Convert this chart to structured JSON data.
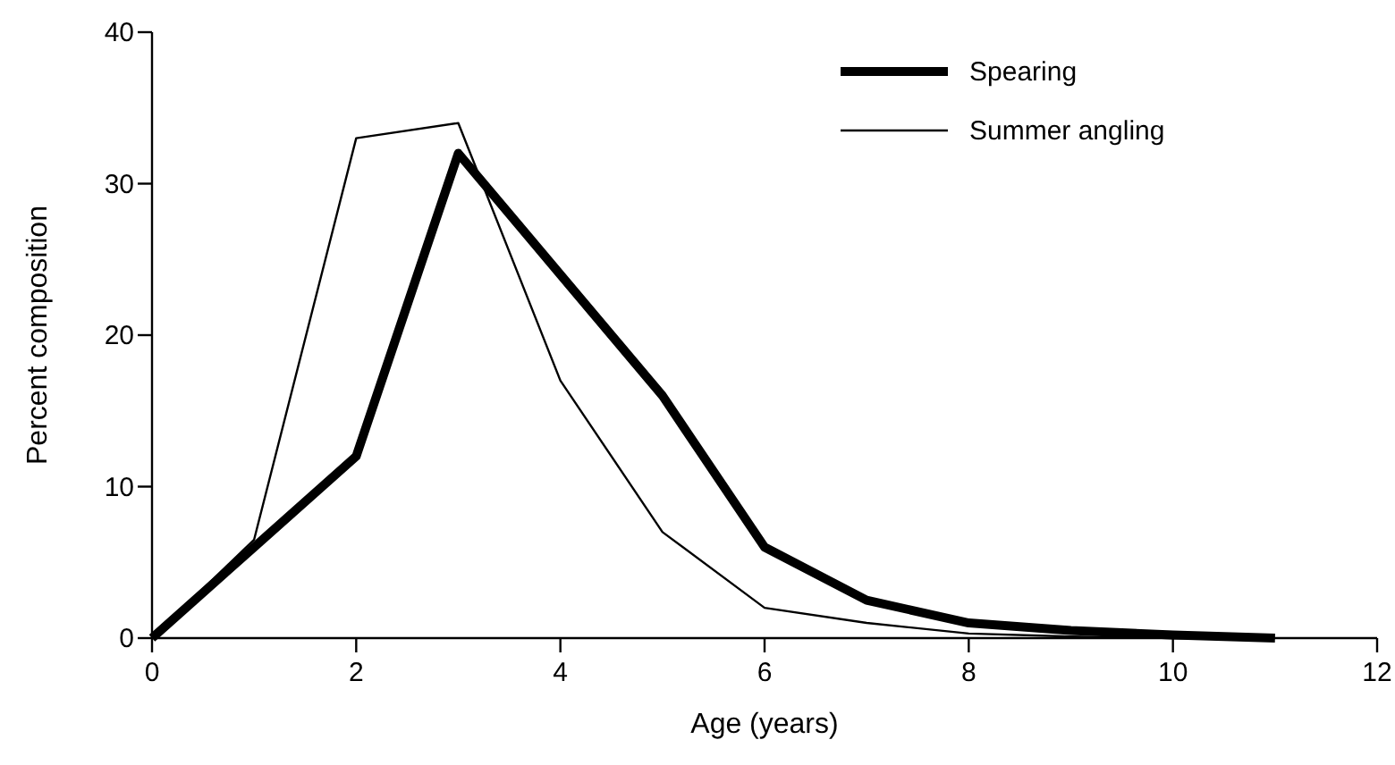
{
  "chart_data": {
    "type": "line",
    "xlabel": "Age (years)",
    "ylabel": "Percent composition",
    "x": [
      0,
      1,
      2,
      3,
      4,
      5,
      6,
      7,
      8,
      9,
      10,
      11
    ],
    "xlim": [
      0,
      12
    ],
    "xticks": [
      0,
      2,
      4,
      6,
      8,
      10,
      12
    ],
    "ylim": [
      0,
      40
    ],
    "yticks": [
      0,
      10,
      20,
      30,
      40
    ],
    "legend": "top right",
    "grid": false,
    "series": [
      {
        "name": "Spearing",
        "color": "#000000",
        "values": [
          0,
          6,
          12,
          32,
          24,
          16,
          6,
          2.5,
          1,
          0.5,
          0.2,
          0
        ]
      },
      {
        "name": "Summer angling",
        "color": "#000000",
        "values": [
          0,
          6.5,
          33,
          34,
          17,
          7,
          2,
          1,
          0.3,
          0.1,
          0,
          0
        ]
      }
    ]
  }
}
